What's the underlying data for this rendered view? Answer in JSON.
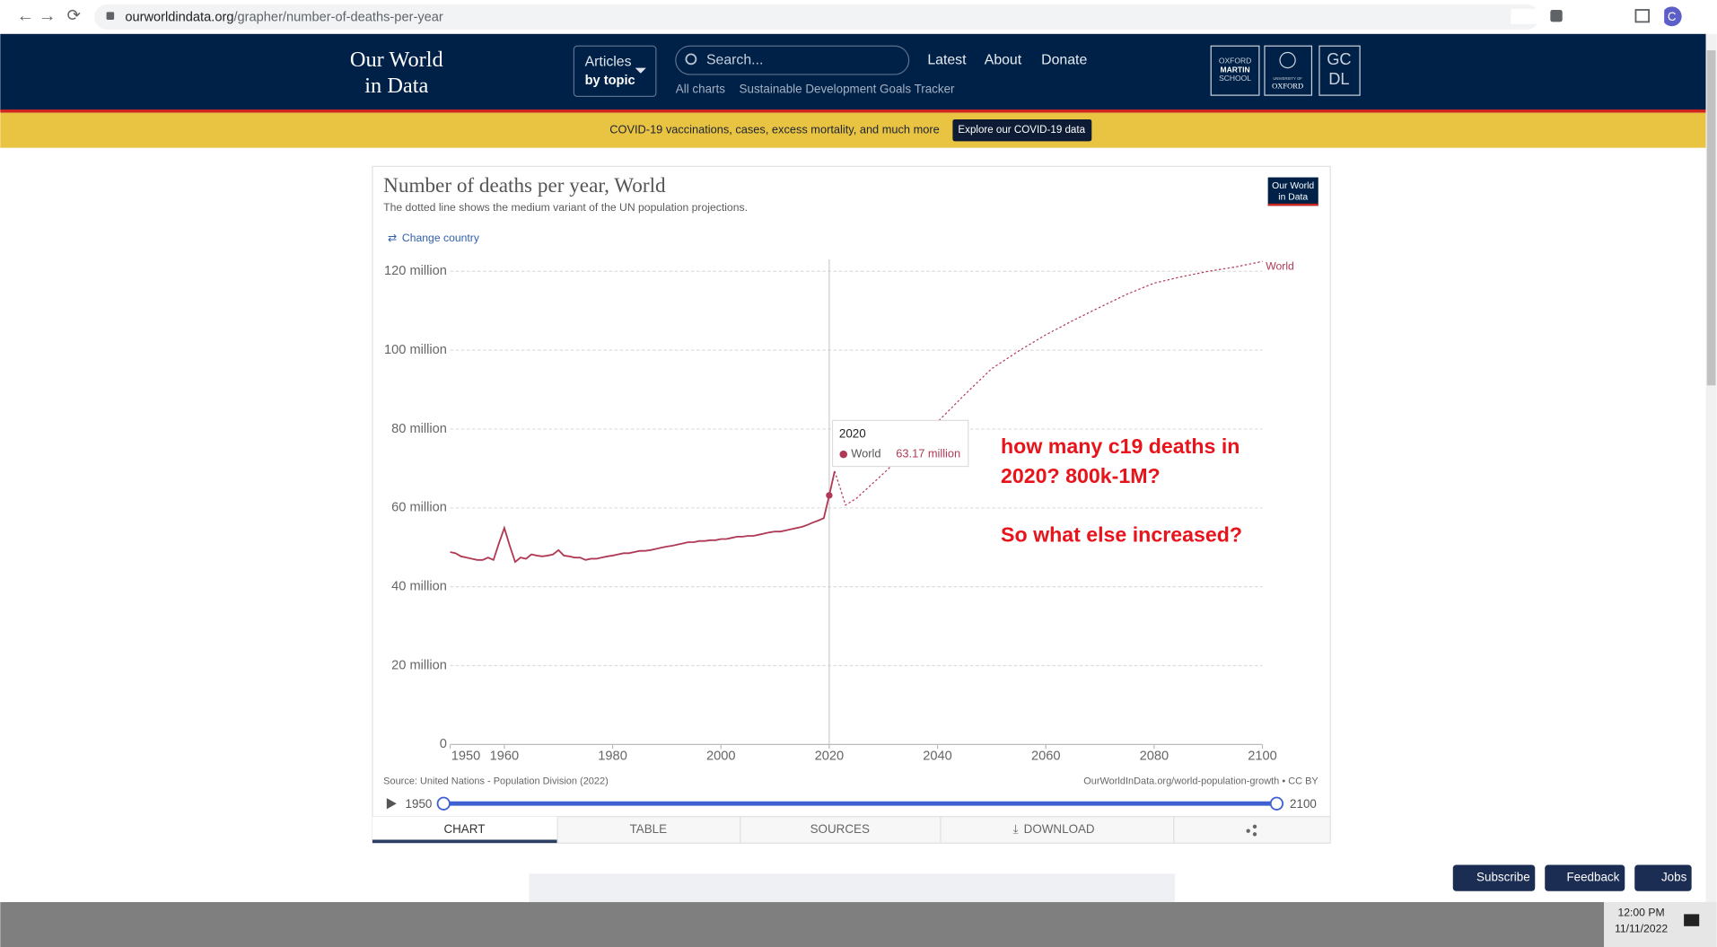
{
  "browser": {
    "url_host": "ourworldindata.org",
    "url_path": "/grapher/number-of-deaths-per-year",
    "profile": "C"
  },
  "nav": {
    "logo": [
      "Our World",
      "in Data"
    ],
    "articles": [
      "Articles",
      "by topic"
    ],
    "search": "Search...",
    "links": [
      "Latest",
      "About",
      "Donate"
    ],
    "sublinks": [
      "All charts",
      "Sustainable Development Goals Tracker"
    ],
    "partners": {
      "oxford_martin": [
        "OXFORD",
        "MARTIN",
        "SCHOOL"
      ],
      "oxford_university": [
        "UNIVERSITY OF",
        "OXFORD"
      ],
      "gcdl": [
        "GC",
        "DL"
      ]
    }
  },
  "banner": {
    "text": "COVID-19 vaccinations, cases, excess mortality, and much more",
    "button": "Explore our COVID-19 data"
  },
  "chart_data": {
    "type": "line",
    "title": "Number of deaths per year, World",
    "subtitle": "The dotted line shows the medium variant of the UN population projections.",
    "change_country": "Change country",
    "logo": [
      "Our World",
      "in Data"
    ],
    "source": "Source: United Nations - Population Division (2022)",
    "license": "OurWorldInData.org/world-population-growth • CC BY",
    "xlim": [
      1950,
      2100
    ],
    "xticks": [
      1950,
      1960,
      1980,
      2000,
      2020,
      2040,
      2060,
      2080,
      2100
    ],
    "ylim": [
      0,
      123
    ],
    "yticks": [
      0,
      {
        "value": 20,
        "label": "20 million"
      },
      {
        "value": 40,
        "label": "40 million"
      },
      {
        "value": 60,
        "label": "60 million"
      },
      {
        "value": 80,
        "label": "80 million"
      },
      {
        "value": 100,
        "label": "100 million"
      },
      {
        "value": 120,
        "label": "120 million"
      }
    ],
    "grid": true,
    "series": [
      {
        "name": "World",
        "color": "#b03a55",
        "x": [
          1950,
          1951,
          1952,
          1953,
          1954,
          1955,
          1956,
          1957,
          1958,
          1959,
          1960,
          1961,
          1962,
          1963,
          1964,
          1965,
          1966,
          1967,
          1968,
          1969,
          1970,
          1971,
          1972,
          1973,
          1974,
          1975,
          1976,
          1977,
          1978,
          1979,
          1980,
          1981,
          1982,
          1983,
          1984,
          1985,
          1986,
          1987,
          1988,
          1989,
          1990,
          1991,
          1992,
          1993,
          1994,
          1995,
          1996,
          1997,
          1998,
          1999,
          2000,
          2001,
          2002,
          2003,
          2004,
          2005,
          2006,
          2007,
          2008,
          2009,
          2010,
          2011,
          2012,
          2013,
          2014,
          2015,
          2016,
          2017,
          2018,
          2019,
          2020,
          2021
        ],
        "values": [
          48.8,
          48.5,
          47.7,
          47.4,
          47.1,
          46.8,
          46.8,
          47.4,
          46.8,
          51.0,
          54.9,
          50.4,
          46.3,
          47.4,
          47.1,
          48.2,
          47.9,
          47.7,
          47.9,
          48.2,
          49.3,
          47.9,
          47.7,
          47.4,
          47.4,
          46.8,
          47.1,
          47.1,
          47.4,
          47.7,
          47.9,
          48.2,
          48.5,
          48.5,
          48.8,
          49.1,
          49.1,
          49.3,
          49.6,
          49.9,
          50.2,
          50.4,
          50.7,
          51.0,
          51.3,
          51.3,
          51.6,
          51.6,
          51.8,
          51.8,
          52.1,
          52.1,
          52.4,
          52.7,
          52.7,
          52.9,
          52.9,
          53.2,
          53.5,
          53.8,
          54.0,
          54.0,
          54.3,
          54.6,
          54.9,
          55.2,
          55.7,
          56.3,
          56.8,
          57.4,
          63.17,
          69.3
        ]
      },
      {
        "color": "#b03a55",
        "line_style": "dotted",
        "x": [
          2022,
          2023,
          2025,
          2030,
          2035,
          2040,
          2045,
          2050,
          2055,
          2060,
          2065,
          2070,
          2075,
          2080,
          2085,
          2090,
          2095,
          2100
        ],
        "values": [
          65.1,
          60.7,
          62.4,
          68.7,
          75.4,
          81.8,
          88.7,
          95.3,
          99.8,
          103.9,
          107.5,
          110.9,
          114.2,
          117.0,
          118.6,
          120.0,
          121.1,
          122.5
        ]
      }
    ],
    "tooltip": {
      "x": 2020,
      "value": 63.17,
      "value_label": "63.17 million"
    },
    "annotations": [
      "how many c19 deaths in",
      "2020? 800k-1M?",
      "So what else increased?"
    ],
    "annotation_color": "#e8141b"
  },
  "tabs": [
    "CHART",
    "TABLE",
    "SOURCES",
    "DOWNLOAD"
  ],
  "floating_buttons": [
    "Subscribe",
    "Feedback",
    "Jobs"
  ],
  "taskbar": {
    "time": "12:00 PM",
    "date": "11/11/2022"
  }
}
